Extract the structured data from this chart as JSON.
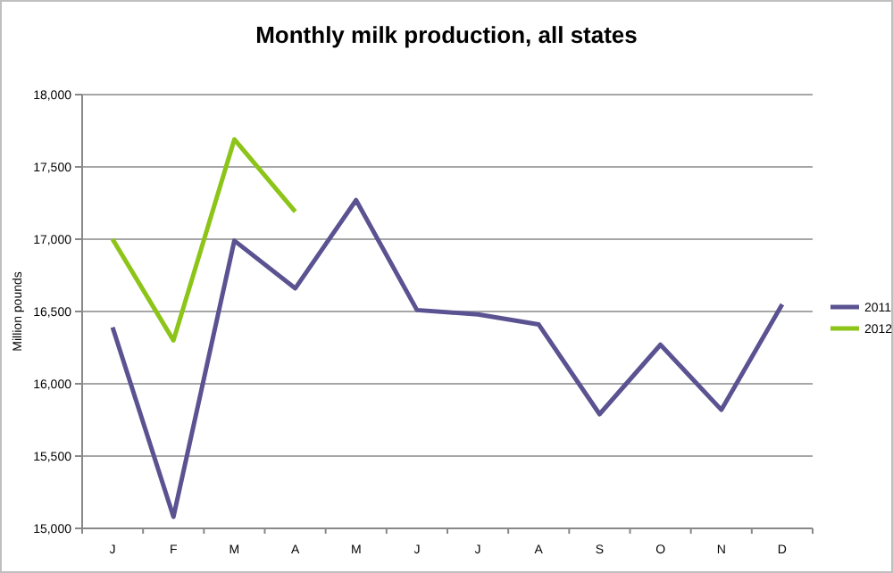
{
  "chart_data": {
    "type": "line",
    "title": "Monthly milk production, all states",
    "ylabel": "Million pounds",
    "categories": [
      "J",
      "F",
      "M",
      "A",
      "M",
      "J",
      "J",
      "A",
      "S",
      "O",
      "N",
      "D"
    ],
    "series": [
      {
        "name": "2011",
        "color": "#5b5391",
        "values": [
          16390,
          15080,
          16990,
          16660,
          17270,
          16510,
          16480,
          16410,
          15790,
          16270,
          15820,
          16550
        ]
      },
      {
        "name": "2012",
        "color": "#8cc418",
        "values": [
          17000,
          16300,
          17690,
          17190,
          null,
          null,
          null,
          null,
          null,
          null,
          null,
          null
        ]
      }
    ],
    "ylim": [
      15000,
      18000
    ],
    "yticks": [
      {
        "value": 15000,
        "label": "15,000"
      },
      {
        "value": 15500,
        "label": "15,500"
      },
      {
        "value": 16000,
        "label": "16,000"
      },
      {
        "value": 16500,
        "label": "16,500"
      },
      {
        "value": 17000,
        "label": "17,000"
      },
      {
        "value": 17500,
        "label": "17,500"
      },
      {
        "value": 18000,
        "label": "18,000"
      }
    ],
    "grid": "y",
    "legend": "right",
    "marker": "none",
    "line_style": "solid"
  }
}
